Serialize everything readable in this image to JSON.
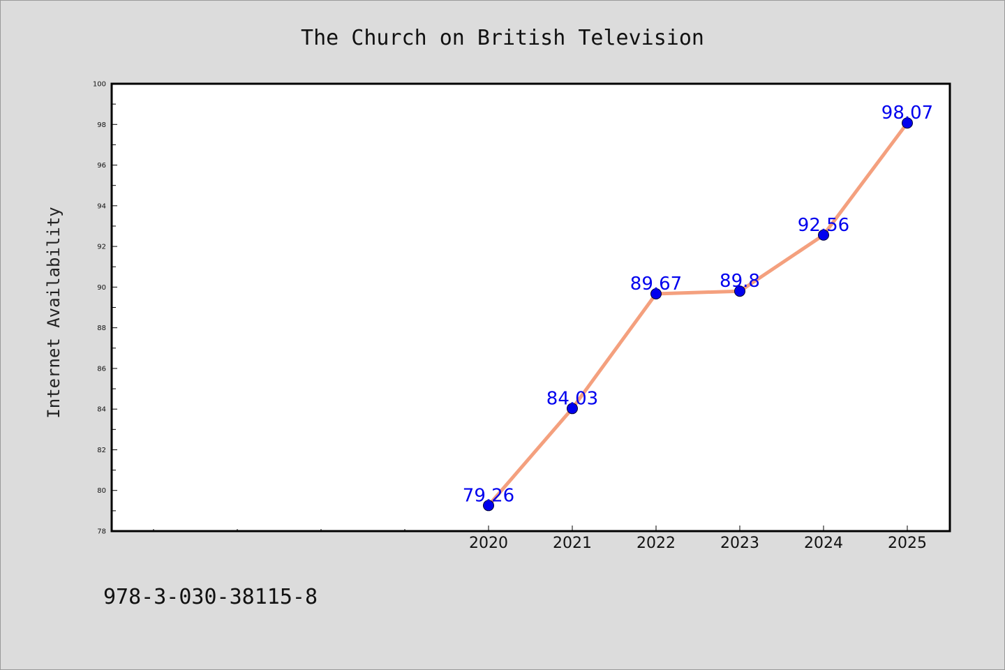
{
  "chart_data": {
    "type": "line",
    "title": "The Church on British Television",
    "xlabel": "",
    "ylabel": "Internet Availability",
    "categories": [
      "2020",
      "2021",
      "2022",
      "2023",
      "2024",
      "2025"
    ],
    "series": [
      {
        "values": [
          79.26,
          84.03,
          89.67,
          89.8,
          92.56,
          98.07
        ],
        "data_labels": [
          "79.26",
          "84.03",
          "89.67",
          "89.8",
          "92.56",
          "98.07"
        ]
      }
    ],
    "ylim": [
      78,
      100
    ],
    "yticks": [
      "78",
      "80",
      "82",
      "84",
      "86",
      "88",
      "90",
      "92",
      "94",
      "96",
      "98",
      "100"
    ],
    "grid": false,
    "legend": "none",
    "colors": {
      "line": "#f4a07e",
      "marker": "#0000ee",
      "data_label": "#0000ee",
      "background": "#dcdcdc",
      "plot_background": "#ffffff"
    }
  },
  "footer": {
    "isbn": "978-3-030-38115-8"
  }
}
